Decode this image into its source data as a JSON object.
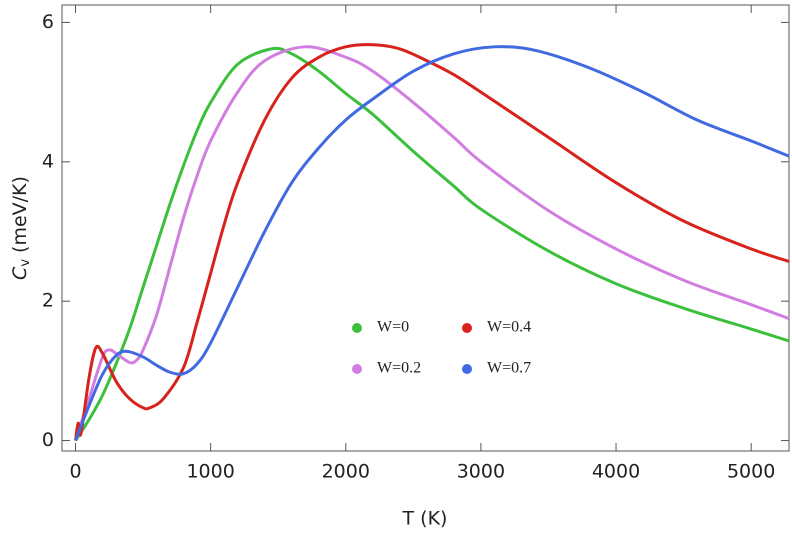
{
  "chart_data": {
    "type": "line",
    "xlabel": "T (K)",
    "ylabel": {
      "symbol": "C",
      "subscript": "v",
      "unit": "(meV/K)"
    },
    "xlim": [
      -100,
      5280
    ],
    "xticks": [
      0,
      1000,
      2000,
      3000,
      4000,
      5000
    ],
    "ylim": [
      -0.15,
      6.25
    ],
    "yticks": [
      0,
      2,
      4,
      6
    ],
    "legend": "center",
    "series": [
      {
        "name": "W=0",
        "color": "#3cc03c",
        "x": [
          0,
          100,
          200,
          300,
          400,
          500,
          600,
          700,
          800,
          900,
          1000,
          1200,
          1450,
          1600,
          1800,
          2000,
          2200,
          2500,
          2800,
          3000,
          3500,
          4000,
          4500,
          5000,
          5280
        ],
        "values": [
          0,
          0.3,
          0.65,
          1.1,
          1.6,
          2.2,
          2.8,
          3.4,
          3.95,
          4.45,
          4.85,
          5.4,
          5.62,
          5.55,
          5.3,
          4.98,
          4.68,
          4.15,
          3.65,
          3.32,
          2.72,
          2.25,
          1.9,
          1.6,
          1.43
        ]
      },
      {
        "name": "W=0.2",
        "color": "#d17ee0",
        "x": [
          0,
          100,
          200,
          250,
          300,
          400,
          450,
          500,
          600,
          700,
          800,
          900,
          1000,
          1200,
          1400,
          1700,
          2000,
          2200,
          2500,
          2800,
          3000,
          3500,
          4000,
          4500,
          5000,
          5280
        ],
        "values": [
          0,
          0.6,
          1.2,
          1.3,
          1.25,
          1.12,
          1.15,
          1.3,
          1.8,
          2.5,
          3.2,
          3.8,
          4.3,
          5.0,
          5.45,
          5.65,
          5.5,
          5.3,
          4.85,
          4.35,
          4.0,
          3.3,
          2.75,
          2.3,
          1.95,
          1.75
        ]
      },
      {
        "name": "W=0.4",
        "color": "#d8221c",
        "x": [
          0,
          20,
          40,
          100,
          150,
          200,
          300,
          400,
          500,
          550,
          650,
          800,
          900,
          1000,
          1100,
          1200,
          1400,
          1600,
          1800,
          2000,
          2200,
          2400,
          2600,
          2800,
          3000,
          3500,
          4000,
          4500,
          5000,
          5280
        ],
        "values": [
          0,
          0.25,
          0.1,
          0.9,
          1.33,
          1.25,
          0.85,
          0.6,
          0.47,
          0.47,
          0.6,
          1.05,
          1.7,
          2.4,
          3.1,
          3.7,
          4.6,
          5.2,
          5.5,
          5.65,
          5.68,
          5.62,
          5.45,
          5.25,
          5.0,
          4.35,
          3.7,
          3.15,
          2.75,
          2.57
        ]
      },
      {
        "name": "W=0.7",
        "color": "#4169e1",
        "x": [
          0,
          100,
          200,
          300,
          380,
          500,
          600,
          700,
          800,
          900,
          1000,
          1200,
          1400,
          1600,
          1800,
          2000,
          2200,
          2500,
          2800,
          3100,
          3400,
          3800,
          4200,
          4600,
          5000,
          5280
        ],
        "values": [
          0,
          0.5,
          0.95,
          1.22,
          1.28,
          1.2,
          1.08,
          0.98,
          0.96,
          1.1,
          1.4,
          2.2,
          3.0,
          3.7,
          4.2,
          4.6,
          4.9,
          5.3,
          5.55,
          5.65,
          5.6,
          5.35,
          5.0,
          4.6,
          4.3,
          4.08
        ]
      }
    ]
  }
}
